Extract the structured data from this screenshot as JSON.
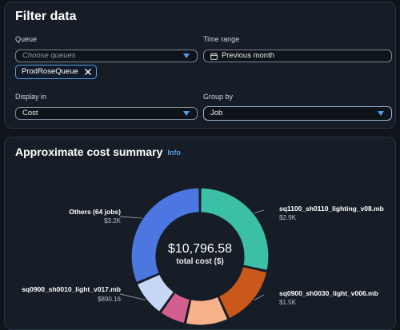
{
  "filter": {
    "title": "Filter data",
    "queue": {
      "label": "Queue",
      "placeholder": "Choose queues"
    },
    "time_range": {
      "label": "Time range",
      "value": "Previous month"
    },
    "token": {
      "label": "ProdRoseQueue"
    },
    "display_in": {
      "label": "Display in",
      "value": "Cost"
    },
    "group_by": {
      "label": "Group by",
      "value": "Job"
    }
  },
  "summary": {
    "title": "Approximate cost summary",
    "info": "Info",
    "total_value": "$10,796.58",
    "total_label": "total cost ($)"
  },
  "chart_data": {
    "type": "pie",
    "center_label": "total cost ($)",
    "total": 10796.58,
    "slices": [
      {
        "name": "sq1100_sh0110_lighting_v08.mb",
        "value_text": "$2.9K",
        "value": 2900,
        "color": "#3bbfa5"
      },
      {
        "name": "sq0900_sh0030_light_v006.mb",
        "value_text": "$1.5K",
        "value": 1500,
        "color": "#c9581a"
      },
      {
        "name": "",
        "value_text": "",
        "value": 1050,
        "color": "#f7b28a"
      },
      {
        "name": "",
        "value_text": "",
        "value": 650,
        "color": "#d35f8f"
      },
      {
        "name": "sq0900_sh0010_light_v017.mb",
        "value_text": "$890.16",
        "value": 890.16,
        "color": "#c7d8f7"
      },
      {
        "name": "Others (64 jobs)",
        "value_text": "$3.2K",
        "value": 3200,
        "color": "#4d77e0"
      }
    ]
  }
}
